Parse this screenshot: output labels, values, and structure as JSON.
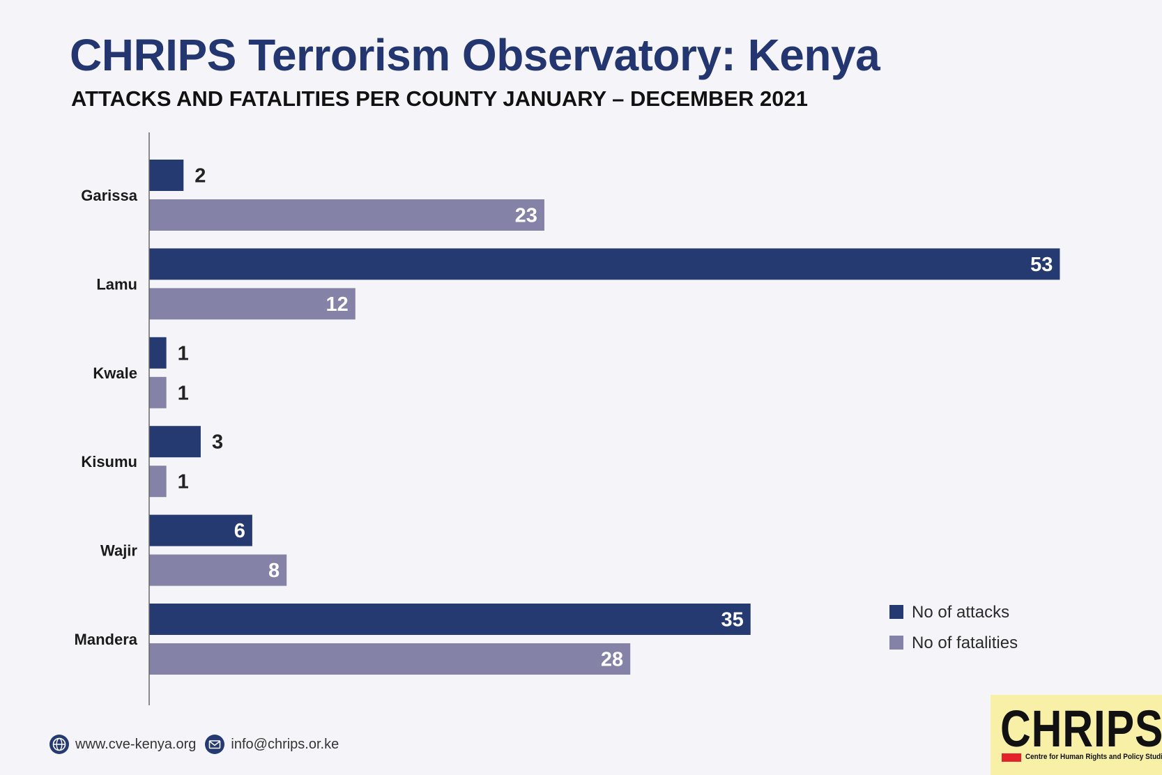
{
  "header": {
    "title": "CHRIPS Terrorism Observatory: Kenya",
    "subtitle": "ATTACKS AND FATALITIES PER COUNTY JANUARY – DECEMBER 2021"
  },
  "colors": {
    "attacks": "#263a72",
    "fatalities": "#8482a6",
    "axis": "#666666",
    "title": "#243670"
  },
  "chart_data": {
    "type": "bar",
    "orientation": "horizontal",
    "categories": [
      "Garissa",
      "Lamu",
      "Kwale",
      "Kisumu",
      "Wajir",
      "Mandera"
    ],
    "series": [
      {
        "name": "No of attacks",
        "values": [
          2,
          53,
          1,
          3,
          6,
          35
        ]
      },
      {
        "name": "No of fatalities",
        "values": [
          23,
          12,
          1,
          1,
          8,
          28
        ]
      }
    ],
    "xlim": [
      0,
      53
    ],
    "grid": false,
    "legend_position": "bottom-right",
    "data_labels": true
  },
  "footer": {
    "website": "www.cve-kenya.org",
    "email": "info@chrips.or.ke",
    "website_icon": "globe-icon",
    "email_icon": "envelope-icon"
  },
  "logo": {
    "word": "CHRIPS",
    "tagline": "Centre for Human Rights and Policy Studies"
  }
}
